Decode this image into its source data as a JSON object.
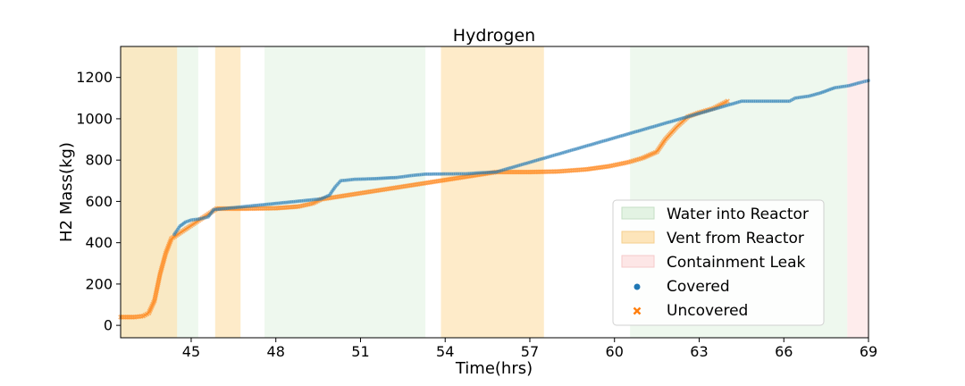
{
  "chart_data": {
    "type": "scatter",
    "title": "Hydrogen",
    "xlabel": "Time(hrs)",
    "ylabel": "H2 Mass(kg)",
    "xlim": [
      42.5,
      69
    ],
    "ylim": [
      -60,
      1350
    ],
    "xticks": [
      45,
      48,
      51,
      54,
      57,
      60,
      63,
      66,
      69
    ],
    "yticks": [
      0,
      200,
      400,
      600,
      800,
      1000,
      1200
    ],
    "grid": false,
    "legend_position": "lower-right",
    "legend": [
      {
        "label": "Water into Reactor",
        "kind": "span",
        "color": "#d9efd9"
      },
      {
        "label": "Vent from Reactor",
        "kind": "span",
        "color": "#fde2b2"
      },
      {
        "label": "Containment Leak",
        "kind": "span",
        "color": "#fde0e0"
      },
      {
        "label": "Covered",
        "kind": "marker",
        "marker": "circle",
        "color": "#1f77b4"
      },
      {
        "label": "Uncovered",
        "kind": "marker",
        "marker": "x",
        "color": "#ff7f0e"
      }
    ],
    "spans": [
      {
        "category": "Water into Reactor",
        "start": 42.5,
        "end": 45.25
      },
      {
        "category": "Vent from Reactor",
        "start": 42.5,
        "end": 44.5
      },
      {
        "category": "Vent from Reactor",
        "start": 45.85,
        "end": 46.75
      },
      {
        "category": "Water into Reactor",
        "start": 47.6,
        "end": 53.3
      },
      {
        "category": "Vent from Reactor",
        "start": 53.85,
        "end": 57.5
      },
      {
        "category": "Water into Reactor",
        "start": 60.55,
        "end": 68.25
      },
      {
        "category": "Containment Leak",
        "start": 68.25,
        "end": 69
      }
    ],
    "series": [
      {
        "name": "Uncovered",
        "color": "#ff7f0e",
        "points": [
          [
            42.5,
            40
          ],
          [
            43.0,
            40
          ],
          [
            43.3,
            45
          ],
          [
            43.5,
            60
          ],
          [
            43.7,
            120
          ],
          [
            43.9,
            250
          ],
          [
            44.1,
            350
          ],
          [
            44.3,
            420
          ],
          [
            45.9,
            565
          ],
          [
            47.0,
            565
          ],
          [
            48.0,
            567
          ],
          [
            48.8,
            575
          ],
          [
            49.3,
            590
          ],
          [
            49.6,
            610
          ],
          [
            55.8,
            742
          ],
          [
            57.0,
            742
          ],
          [
            58.0,
            745
          ],
          [
            59.0,
            755
          ],
          [
            59.8,
            770
          ],
          [
            60.5,
            790
          ],
          [
            61.0,
            810
          ],
          [
            61.5,
            840
          ],
          [
            61.8,
            900
          ],
          [
            62.2,
            960
          ],
          [
            62.6,
            1010
          ],
          [
            63.0,
            1030
          ],
          [
            63.5,
            1050
          ],
          [
            64.0,
            1085
          ]
        ]
      },
      {
        "name": "Covered",
        "color": "#1f77b4",
        "points": [
          [
            44.4,
            440
          ],
          [
            44.6,
            480
          ],
          [
            44.8,
            500
          ],
          [
            45.0,
            510
          ],
          [
            45.3,
            515
          ],
          [
            45.6,
            525
          ],
          [
            45.8,
            560
          ],
          [
            49.6,
            612
          ],
          [
            49.9,
            630
          ],
          [
            50.1,
            670
          ],
          [
            50.3,
            700
          ],
          [
            50.8,
            707
          ],
          [
            51.5,
            710
          ],
          [
            52.3,
            716
          ],
          [
            52.8,
            725
          ],
          [
            53.3,
            732
          ],
          [
            54.0,
            733
          ],
          [
            54.8,
            734
          ],
          [
            55.2,
            738
          ],
          [
            55.8,
            742
          ],
          [
            64.5,
            1085
          ],
          [
            65.5,
            1085
          ],
          [
            66.2,
            1085
          ],
          [
            66.4,
            1100
          ],
          [
            66.9,
            1110
          ],
          [
            67.3,
            1125
          ],
          [
            67.8,
            1150
          ],
          [
            68.3,
            1160
          ],
          [
            68.7,
            1175
          ],
          [
            69.0,
            1185
          ]
        ]
      }
    ]
  }
}
